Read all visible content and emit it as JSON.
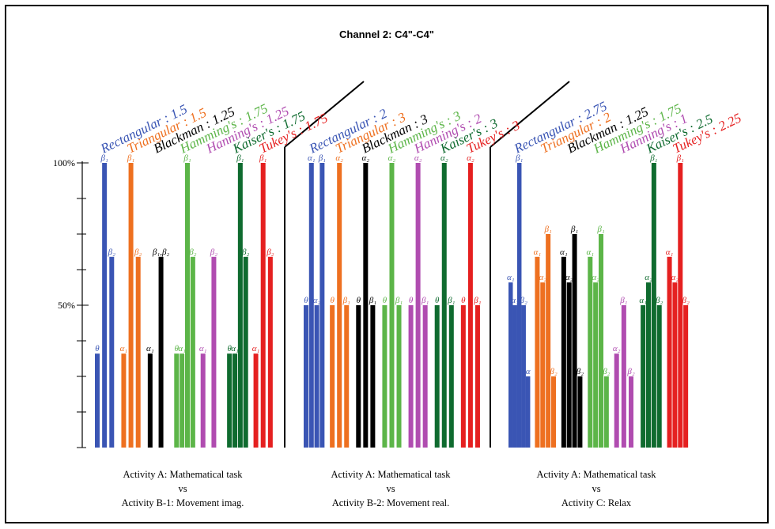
{
  "chart_data": {
    "type": "bar",
    "title": "Channel 2: C4\"-C4\"",
    "y_tick_labels": [
      "100%",
      "50%"
    ],
    "ylim": [
      0,
      100
    ],
    "colors": {
      "Rectangular": "#3a55b4",
      "Triangular": "#ee7020",
      "Blackman": "#000000",
      "Hamming": "#5cb548",
      "Hanning": "#b04cb0",
      "Kaiser": "#0f6b2f",
      "Tukey": "#e52020"
    },
    "groups": [
      {
        "label_lines": [
          "Activity A: Mathematical task",
          "vs",
          "Activity B-1: Movement imag."
        ],
        "windows": [
          {
            "label": "Rectangular : 1.5",
            "color_key": "Rectangular",
            "bars": [
              {
                "value": 33,
                "label": "θ"
              },
              {
                "value": 100,
                "label": "β₁"
              },
              {
                "value": 67,
                "label": "β₂"
              }
            ]
          },
          {
            "label": "Triangular : 1.5",
            "color_key": "Triangular",
            "bars": [
              {
                "value": 33,
                "label": "α₁"
              },
              {
                "value": 100,
                "label": "β₁"
              },
              {
                "value": 67,
                "label": "β₂"
              }
            ]
          },
          {
            "label": "Blackman : 1.25",
            "color_key": "Blackman",
            "bars": [
              {
                "value": 33,
                "label": "α₁"
              },
              {
                "value": 67,
                "label": "β₁,β₂"
              }
            ]
          },
          {
            "label": "Hamming's : 1.75",
            "color_key": "Hamming",
            "bars": [
              {
                "value": 33,
                "label": "θ"
              },
              {
                "value": 33,
                "label": "α₁"
              },
              {
                "value": 100,
                "label": "β₁"
              },
              {
                "value": 67,
                "label": "β₂"
              }
            ]
          },
          {
            "label": "Hanning's : 1.25",
            "color_key": "Hanning",
            "bars": [
              {
                "value": 33,
                "label": "α₁"
              },
              {
                "value": 67,
                "label": "β₂"
              }
            ]
          },
          {
            "label": "Kaiser's : 1.75",
            "color_key": "Kaiser",
            "bars": [
              {
                "value": 33,
                "label": "θ"
              },
              {
                "value": 33,
                "label": "α₁"
              },
              {
                "value": 100,
                "label": "β₁"
              },
              {
                "value": 67,
                "label": "β₂"
              }
            ]
          },
          {
            "label": "Tukey's : 1.75",
            "color_key": "Tukey",
            "bars": [
              {
                "value": 33,
                "label": "α₁"
              },
              {
                "value": 100,
                "label": "β₁"
              },
              {
                "value": 67,
                "label": "β₂"
              }
            ]
          }
        ]
      },
      {
        "label_lines": [
          "Activity A: Mathematical task",
          "vs",
          "Activity B-2: Movement real."
        ],
        "windows": [
          {
            "label": "Rectangular : 2",
            "color_key": "Rectangular",
            "bars": [
              {
                "value": 50,
                "label": "θ"
              },
              {
                "value": 100,
                "label": "α₁"
              },
              {
                "value": 50,
                "label": "α₂"
              },
              {
                "value": 100,
                "label": "β₁"
              }
            ]
          },
          {
            "label": "Triangular : 3",
            "color_key": "Triangular",
            "bars": [
              {
                "value": 50,
                "label": "θ"
              },
              {
                "value": 100,
                "label": "α₂"
              },
              {
                "value": 50,
                "label": "β₁"
              }
            ]
          },
          {
            "label": "Blackman : 3",
            "color_key": "Blackman",
            "bars": [
              {
                "value": 50,
                "label": "θ"
              },
              {
                "value": 100,
                "label": "α₂"
              },
              {
                "value": 50,
                "label": "β₁"
              }
            ]
          },
          {
            "label": "Hamming's : 3",
            "color_key": "Hamming",
            "bars": [
              {
                "value": 50,
                "label": "θ"
              },
              {
                "value": 100,
                "label": "α₂"
              },
              {
                "value": 50,
                "label": "β₁"
              }
            ]
          },
          {
            "label": "Hanning's : 2",
            "color_key": "Hanning",
            "bars": [
              {
                "value": 50,
                "label": "θ"
              },
              {
                "value": 100,
                "label": "α₂"
              },
              {
                "value": 50,
                "label": "β₁"
              }
            ]
          },
          {
            "label": "Kaiser's : 3",
            "color_key": "Kaiser",
            "bars": [
              {
                "value": 50,
                "label": "θ"
              },
              {
                "value": 100,
                "label": "α₂"
              },
              {
                "value": 50,
                "label": "β₁"
              }
            ]
          },
          {
            "label": "Tukey's : 3",
            "color_key": "Tukey",
            "bars": [
              {
                "value": 50,
                "label": "θ"
              },
              {
                "value": 100,
                "label": "α₂"
              },
              {
                "value": 50,
                "label": "β₁"
              }
            ]
          }
        ]
      },
      {
        "label_lines": [
          "Activity A: Mathematical task",
          "vs",
          "Activity C: Relax"
        ],
        "windows": [
          {
            "label": "Rectangular : 2.75",
            "color_key": "Rectangular",
            "bars": [
              {
                "value": 58,
                "label": "α₁"
              },
              {
                "value": 50,
                "label": "α₂"
              },
              {
                "value": 100,
                "label": "β₁"
              },
              {
                "value": 50,
                "label": "β₂"
              },
              {
                "value": 25,
                "label": "α"
              }
            ]
          },
          {
            "label": "Triangular : 2",
            "color_key": "Triangular",
            "bars": [
              {
                "value": 67,
                "label": "α₁"
              },
              {
                "value": 58,
                "label": "α₂"
              },
              {
                "value": 75,
                "label": "β₁"
              },
              {
                "value": 25,
                "label": "β₂"
              }
            ]
          },
          {
            "label": "Blackman : 1.25",
            "color_key": "Blackman",
            "bars": [
              {
                "value": 67,
                "label": "α₁"
              },
              {
                "value": 58,
                "label": "α₂"
              },
              {
                "value": 75,
                "label": "β₁"
              },
              {
                "value": 25,
                "label": "β₂"
              }
            ]
          },
          {
            "label": "Hamming's : 1.75",
            "color_key": "Hamming",
            "bars": [
              {
                "value": 67,
                "label": "α₁"
              },
              {
                "value": 58,
                "label": "α₂"
              },
              {
                "value": 75,
                "label": "β₁"
              },
              {
                "value": 25,
                "label": "β₂"
              }
            ]
          },
          {
            "label": "Hanning's : 1",
            "color_key": "Hanning",
            "bars": [
              {
                "value": 33,
                "label": "α₂"
              },
              {
                "value": 50,
                "label": "β₁"
              },
              {
                "value": 25,
                "label": "β₂"
              }
            ]
          },
          {
            "label": "Kaiser's : 2.5",
            "color_key": "Kaiser",
            "bars": [
              {
                "value": 50,
                "label": "α₁"
              },
              {
                "value": 58,
                "label": "α₂"
              },
              {
                "value": 100,
                "label": "β₁"
              },
              {
                "value": 50,
                "label": "β₂"
              }
            ]
          },
          {
            "label": "Tukey's : 2.25",
            "color_key": "Tukey",
            "bars": [
              {
                "value": 67,
                "label": "α₁"
              },
              {
                "value": 58,
                "label": "α₂"
              },
              {
                "value": 100,
                "label": "β₁"
              },
              {
                "value": 50,
                "label": "β₂"
              }
            ]
          }
        ]
      }
    ]
  }
}
